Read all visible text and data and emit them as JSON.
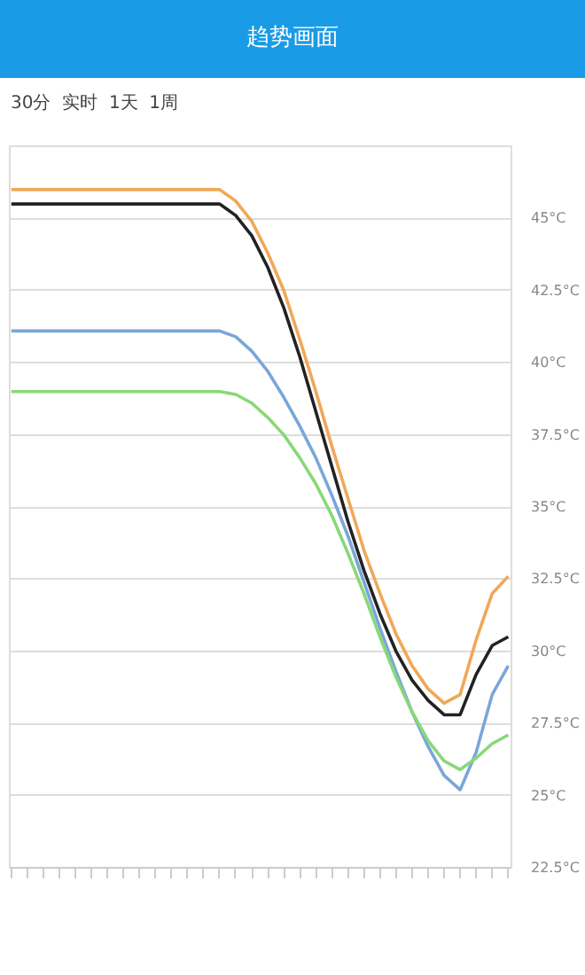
{
  "chart_data": {
    "type": "line",
    "title": "趋势画面",
    "annotations": [
      "30分",
      "实时",
      "1天",
      "1周"
    ],
    "categories": [
      null,
      null,
      null,
      null,
      null,
      null,
      null,
      null,
      null,
      null,
      null,
      null,
      null,
      null,
      null,
      null,
      null,
      null,
      null,
      null,
      null,
      null,
      null,
      null,
      null,
      null,
      null,
      null,
      null,
      null,
      null,
      null
    ],
    "series": [
      {
        "color": "#f0a858",
        "values": [
          46,
          46,
          46,
          46,
          46,
          46,
          46,
          46,
          46,
          46,
          46,
          46,
          46,
          46,
          45.6,
          44.9,
          43.8,
          42.5,
          40.8,
          39.0,
          37.1,
          35.3,
          33.5,
          32.0,
          30.6,
          29.5,
          28.7,
          28.2,
          28.5,
          30.4,
          32.0,
          32.6
        ]
      },
      {
        "color": "#222222",
        "values": [
          45.5,
          45.5,
          45.5,
          45.5,
          45.5,
          45.5,
          45.5,
          45.5,
          45.5,
          45.5,
          45.5,
          45.5,
          45.5,
          45.5,
          45.1,
          44.4,
          43.3,
          41.9,
          40.2,
          38.3,
          36.4,
          34.5,
          32.8,
          31.3,
          30.0,
          29.0,
          28.3,
          27.8,
          27.8,
          29.2,
          30.2,
          30.5
        ]
      },
      {
        "color": "#7aa6d8",
        "values": [
          41.1,
          41.1,
          41.1,
          41.1,
          41.1,
          41.1,
          41.1,
          41.1,
          41.1,
          41.1,
          41.1,
          41.1,
          41.1,
          41.1,
          40.9,
          40.4,
          39.7,
          38.8,
          37.8,
          36.7,
          35.4,
          34.0,
          32.4,
          30.8,
          29.3,
          27.9,
          26.7,
          25.7,
          25.2,
          26.5,
          28.5,
          29.5
        ]
      },
      {
        "color": "#88d878",
        "values": [
          39.0,
          39.0,
          39.0,
          39.0,
          39.0,
          39.0,
          39.0,
          39.0,
          39.0,
          39.0,
          39.0,
          39.0,
          39.0,
          39.0,
          38.9,
          38.6,
          38.1,
          37.5,
          36.7,
          35.8,
          34.7,
          33.4,
          32.0,
          30.5,
          29.1,
          27.9,
          26.9,
          26.2,
          25.9,
          26.3,
          26.8,
          27.1
        ]
      }
    ],
    "ylim": [
      22.5,
      47.5
    ],
    "yticks": [
      {
        "value": 22.5,
        "label": "22.5°C"
      },
      {
        "value": 25,
        "label": "25°C"
      },
      {
        "value": 27.5,
        "label": "27.5°C"
      },
      {
        "value": 30,
        "label": "30°C"
      },
      {
        "value": 32.5,
        "label": "32.5°C"
      },
      {
        "value": 35,
        "label": "35°C"
      },
      {
        "value": 37.5,
        "label": "37.5°C"
      },
      {
        "value": 40,
        "label": "40°C"
      },
      {
        "value": 42.5,
        "label": "42.5°C"
      },
      {
        "value": 45,
        "label": "45°C"
      }
    ],
    "grid": "y",
    "marker": "none",
    "line_style": "solid"
  }
}
